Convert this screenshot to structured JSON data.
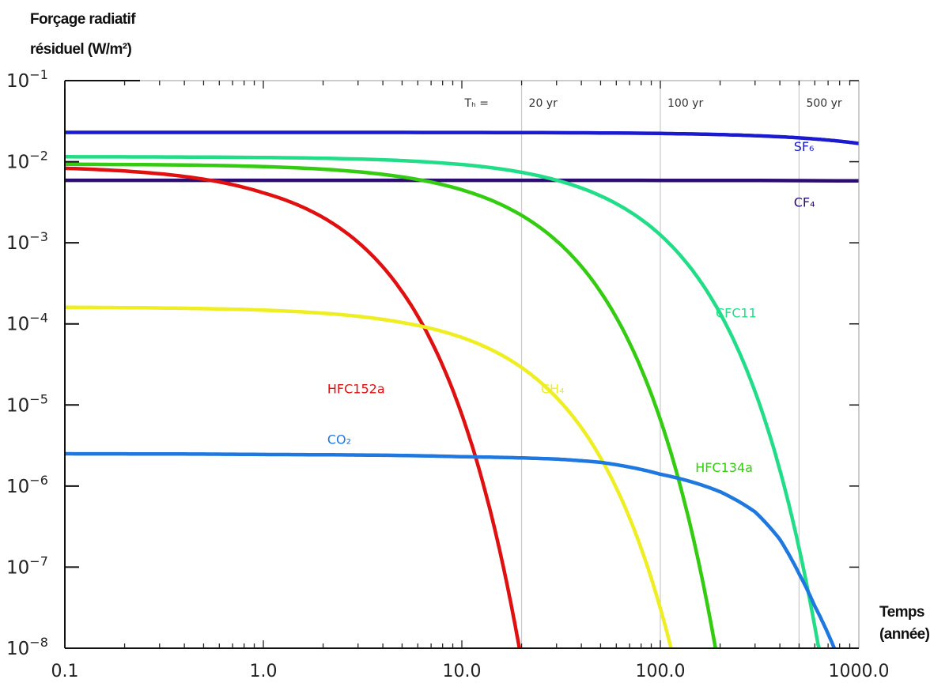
{
  "chart_data": {
    "type": "line",
    "title": "",
    "ylabel_line1": "Forçage radiatif",
    "ylabel_line2": "résiduel (W/m²)",
    "xlabel_line1": "Temps",
    "xlabel_line2": "(année)",
    "xscale": "log",
    "yscale": "log",
    "xlim": [
      0.1,
      1000
    ],
    "ylim": [
      1e-08,
      0.1
    ],
    "grid": false,
    "x_ticks": [
      {
        "value": 0.1,
        "label": "0.1"
      },
      {
        "value": 1,
        "label": "1.0"
      },
      {
        "value": 10,
        "label": "10.0"
      },
      {
        "value": 100,
        "label": "100.0"
      },
      {
        "value": 1000,
        "label": "1000.0"
      }
    ],
    "y_ticks": [
      {
        "value": 0.1,
        "base": "10",
        "exp": "−1"
      },
      {
        "value": 0.01,
        "base": "10",
        "exp": "−2"
      },
      {
        "value": 0.001,
        "base": "10",
        "exp": "−3"
      },
      {
        "value": 0.0001,
        "base": "10",
        "exp": "−4"
      },
      {
        "value": 1e-05,
        "base": "10",
        "exp": "−5"
      },
      {
        "value": 1e-06,
        "base": "10",
        "exp": "−6"
      },
      {
        "value": 1e-07,
        "base": "10",
        "exp": "−7"
      },
      {
        "value": 1e-08,
        "base": "10",
        "exp": "−8"
      }
    ],
    "time_horizons": {
      "prefix": "Tₕ =",
      "lines": [
        {
          "value": 20,
          "label": "20 yr"
        },
        {
          "value": 100,
          "label": "100 yr"
        },
        {
          "value": 500,
          "label": "500 yr"
        }
      ]
    },
    "series": [
      {
        "name": "SF₆",
        "color": "#1a1ad0",
        "label_at": [
          470,
          0.0135
        ],
        "x": [
          0.1,
          100,
          500,
          1000
        ],
        "y": [
          0.023,
          0.0223,
          0.0197,
          0.0168
        ]
      },
      {
        "name": "CF₄",
        "color": "#2c0c70",
        "label_at": [
          470,
          0.0028
        ],
        "x": [
          0.1,
          1000
        ],
        "y": [
          0.0059,
          0.0058
        ]
      },
      {
        "name": "CFC11",
        "color": "#22dd88",
        "label_at": [
          190,
          0.00012
        ],
        "x": [
          0.1,
          20,
          50,
          100,
          200,
          400,
          630
        ],
        "y": [
          0.0115,
          0.0074,
          0.00379,
          0.00125,
          0.000135,
          1.58e-06,
          9.5e-09
        ]
      },
      {
        "name": "HFC134a",
        "color": "#33cc11",
        "label_at": [
          150,
          1.5e-06
        ],
        "x": [
          0.1,
          10,
          20,
          50,
          100,
          150,
          190
        ],
        "y": [
          0.0093,
          0.0045,
          0.00218,
          0.000248,
          6.6e-06,
          1.77e-07,
          9.7e-09
        ]
      },
      {
        "name": "HFC152a",
        "color": "#e01010",
        "label_at": [
          2.1,
          1.4e-05
        ],
        "x": [
          0.1,
          1,
          2,
          5,
          10,
          15,
          19.5
        ],
        "y": [
          0.0083,
          0.00413,
          0.00205,
          0.00025,
          7.6e-06,
          2.3e-07,
          9.9e-09
        ]
      },
      {
        "name": "CH₄",
        "color": "#eeee22",
        "label_at": [
          25,
          1.4e-05
        ],
        "x": [
          0.1,
          5,
          10,
          20,
          50,
          100,
          113
        ],
        "y": [
          0.00016,
          0.000104,
          6.8e-05,
          2.9e-05,
          2.23e-06,
          3.1e-08,
          1.02e-08
        ]
      },
      {
        "name": "CO₂",
        "color": "#1f78e0",
        "label_at": [
          2.1,
          3.3e-06
        ],
        "x": [
          0.1,
          1,
          10,
          30,
          50,
          100,
          126,
          200,
          300,
          400,
          500,
          600,
          752
        ],
        "y": [
          2.5e-06,
          2.45e-06,
          2.3e-06,
          2.15e-06,
          1.96e-06,
          1.4e-06,
          1.23e-06,
          8.5e-07,
          4.8e-07,
          2.2e-07,
          8.3e-08,
          3.3e-08,
          1e-08
        ]
      }
    ]
  }
}
